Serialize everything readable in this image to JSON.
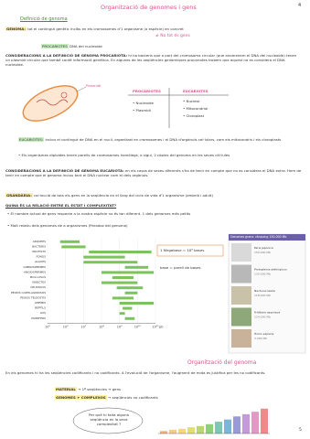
{
  "header": {
    "title": "Organització de genomes i gens",
    "page_top": "4"
  },
  "section1": {
    "heading": "Definició de genoma",
    "genoma_label": "GENOMA:",
    "genoma_text": "tot el contingut genètic inclòs en els cromosomes d'1 organisme (o espècie) en concret",
    "note": "≠ No tot és gens",
    "prokaryote_label": "PROCARIOTES",
    "prokaryote_text": "DNA del nucleoide",
    "cons_pro_label": "CONSIDERACIONS A LA DEFINICIÓ DE GENOMA PROCARIOTA:",
    "cons_pro_text": "hi ha bacteris que a part del cromosoma circular (que anomenem el DNA del nucleoide) tenen un plasmidi circular que també conté informació genètica. En algunes de les seqüències genòmiques procariotes trobem que aquest no es considera el DNA nucleoide.",
    "drawing_label": "Plasmidi",
    "table": {
      "headers": [
        "PROCARIOTES",
        "EUCARIOTES"
      ],
      "rows": [
        [
          "• Nucleoide",
          "• Nuclear"
        ],
        [
          "• Plasmidi",
          "• Mitocondrial"
        ],
        [
          "",
          "• Cloroplast"
        ]
      ]
    },
    "eukaryote_label": "EUCARIOTES:",
    "eukaryote_text": "inclou el contingut de DNA en el nucli, organitzat en cromosomes i el DNA d'orgànuls cel·lulars, com els mitocondris i els cloroplasts",
    "eukaryote_bullet": "• Els organismes diploides tenen parells de cromosomes homòlegs, o sigui, 2 còpies del genoma en les seves cèl·lules",
    "cons_euk_label": "CONSIDERACIONS A LA DEFINICIÓ DE GENOMA EUCARIOTA:",
    "cons_euk_text": "en els casos de sexes diferents s'ha de tenir en compte que no es considera el DNA extra. Hem de tenir en compte que el genoma inclou tant el DNA nuclear com el dels orgànuls."
  },
  "section2": {
    "label": "GRANDÀRIA:",
    "text": "col·lecció de tots els gens en la seqüència en el llarg del cicle de vida d'1 organisme (embrió i adult)",
    "question": "QUINA ÉS LA RELACIÓ ENTRE EL ESTAT I COMPLEXITAT?",
    "bullet1": "• El nombre actual de gens respecte a la nostra espècie no és tan diferent. 1 dels genomes més petits",
    "bullet2": "• Molt relatiu dels genomes de a organismes (Paradox del genoma)",
    "note1": "1 Megabase = 10⁶ bases",
    "note2": "base = parell de bases",
    "genome_chart": {
      "xlim": [
        100000,
        100000000000
      ],
      "log": true,
      "xunit": "pb",
      "xticks": [
        {
          "value": 100000,
          "label": "10⁵"
        },
        {
          "value": 1000000,
          "label": "10⁶"
        },
        {
          "value": 10000000,
          "label": "10⁷"
        },
        {
          "value": 100000000,
          "label": "10⁸"
        },
        {
          "value": 1000000000,
          "label": "10⁹"
        },
        {
          "value": 10000000000,
          "label": "10¹⁰"
        },
        {
          "value": 100000000000,
          "label": "10¹¹"
        }
      ],
      "groups": [
        {
          "name": "ARQUEES",
          "min": 500000,
          "max": 6000000
        },
        {
          "name": "BACTERIS",
          "min": 600000,
          "max": 13000000
        },
        {
          "name": "PROTISTS",
          "min": 20000000,
          "max": 60000000000
        },
        {
          "name": "FONGS",
          "min": 10000000,
          "max": 2000000000
        },
        {
          "name": "ALGUES",
          "min": 10000000,
          "max": 10000000000
        },
        {
          "name": "GIMNOSPERMES",
          "min": 2000000000,
          "max": 40000000000
        },
        {
          "name": "ANGIOSPERMES",
          "min": 100000000,
          "max": 80000000000
        },
        {
          "name": "MOL·LUSCS",
          "min": 400000000,
          "max": 6000000000
        },
        {
          "name": "INSECTES",
          "min": 100000000,
          "max": 10000000000
        },
        {
          "name": "CRUSTACIS",
          "min": 700000000,
          "max": 20000000000
        },
        {
          "name": "PEIXOS CARTILAGINOSOS",
          "min": 2000000000,
          "max": 10000000000
        },
        {
          "name": "PEIXOS TELEÒSTIS",
          "min": 400000000,
          "max": 6000000000
        },
        {
          "name": "AMFIBIS",
          "min": 1000000000,
          "max": 80000000000
        },
        {
          "name": "RÈPTILS",
          "min": 1500000000,
          "max": 5000000000
        },
        {
          "name": "AUS",
          "min": 1000000000,
          "max": 2000000000
        },
        {
          "name": "MAMÍFERS",
          "min": 2000000000,
          "max": 7000000000
        }
      ]
    },
    "panel": {
      "title": "Genomes grans: rànquing 150.000 Mb",
      "cards": [
        {
          "name": "Paris japonica",
          "sub": "150.000 Mb"
        },
        {
          "name": "Protopterus aethiopicus",
          "sub": "130.000 Mb"
        },
        {
          "name": "Necturus lewisi",
          "sub": "118.000 Mb"
        },
        {
          "name": "Fritillaria assyriaca",
          "sub": "124.000 Mb"
        },
        {
          "name": "Homo sapiens",
          "sub": "3.200 Mb"
        }
      ]
    }
  },
  "section3": {
    "heading": "Organització del genoma",
    "text": "En els genomes hi ha les seqüències codificants i no codificants. A l'evolució de l'organisme, l'augment de mida es justifica per les no codificants.",
    "line1_label": "MATERIAL",
    "line1_text": "→ 1ª seqüències → gens",
    "line2_label": "GENOMES + COMPLEXOS",
    "line2_text": "→ seqüències no codificants",
    "cloud": "Per què hi falta alguna seqüència en la seva complexitat ?",
    "coding_chart": {
      "ylim": [
        0,
        100
      ],
      "values": [
        8,
        12,
        15,
        20,
        24,
        30,
        38,
        45,
        55,
        62,
        70,
        80
      ]
    },
    "page_number": "5"
  }
}
